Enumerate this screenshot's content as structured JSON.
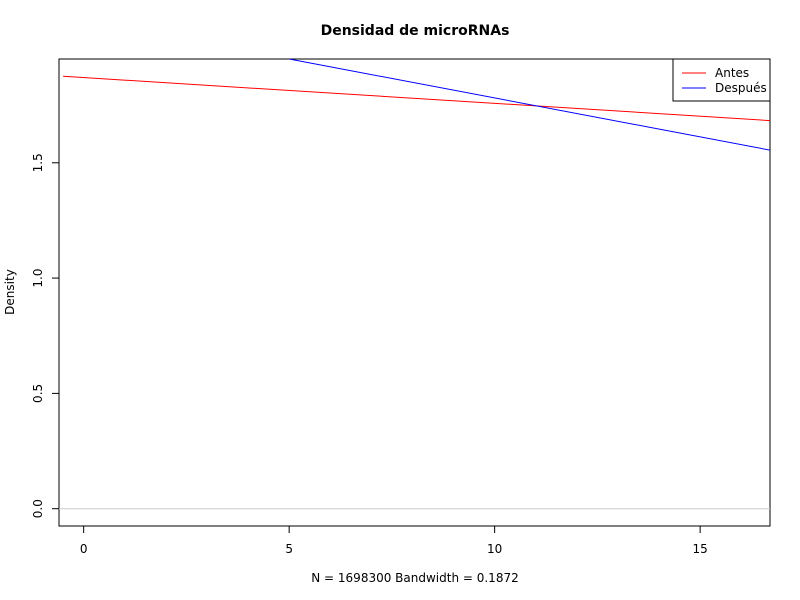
{
  "chart_data": {
    "type": "line",
    "title": "Densidad de microRNAs",
    "xlabel": "N = 1698300   Bandwidth = 0.1872",
    "ylabel": "Density",
    "xlim": [
      -0.6,
      16.7
    ],
    "ylim": [
      -0.075,
      1.95
    ],
    "xticks": [
      0,
      5,
      10,
      15
    ],
    "yticks": [
      0.0,
      0.5,
      1.0,
      1.5
    ],
    "xtick_labels": [
      "0",
      "5",
      "10",
      "15"
    ],
    "ytick_labels": [
      "0.0",
      "0.5",
      "1.0",
      "1.5"
    ],
    "grid": false,
    "zero_line": true,
    "legend_position": "top-right",
    "series": [
      {
        "name": "Antes",
        "color": "#ff0000",
        "x": [
          -0.5,
          16.7
        ],
        "y": [
          1.875,
          1.683
        ]
      },
      {
        "name": "Después",
        "color": "#0000ff",
        "x": [
          5.0,
          16.7
        ],
        "y": [
          1.95,
          1.555
        ]
      }
    ]
  }
}
